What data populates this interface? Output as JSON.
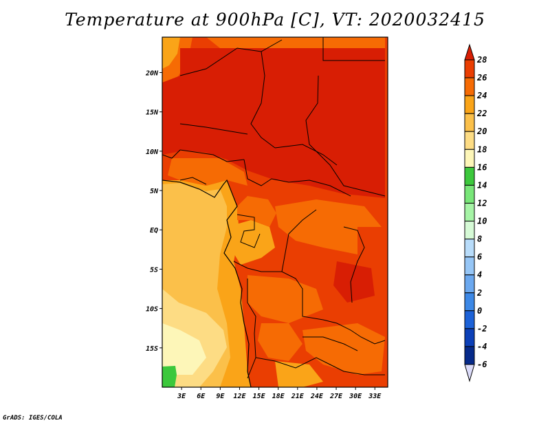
{
  "title": "Temperature at 900hPa [C], VT: 2020032415",
  "credit": "GrADS: IGES/COLA",
  "map": {
    "lat_labels": [
      "20N",
      "15N",
      "10N",
      "5N",
      "EQ",
      "5S",
      "10S",
      "15S"
    ],
    "lon_labels": [
      "3E",
      "6E",
      "9E",
      "12E",
      "15E",
      "18E",
      "21E",
      "24E",
      "27E",
      "30E",
      "33E"
    ],
    "lat_range": [
      -20,
      24.5
    ],
    "lon_range": [
      0,
      35
    ]
  },
  "colorbar": {
    "labels": [
      "28",
      "26",
      "24",
      "22",
      "20",
      "18",
      "16",
      "14",
      "12",
      "10",
      "8",
      "6",
      "4",
      "2",
      "0",
      "-2",
      "-4",
      "-6"
    ],
    "colors": [
      "#d81e04",
      "#ea3e02",
      "#f66b04",
      "#faa418",
      "#fbc04a",
      "#fddc84",
      "#fdf6b8",
      "#3cc83c",
      "#78e678",
      "#a6f4a6",
      "#d6fad6",
      "#b8dcfa",
      "#96c6f6",
      "#6ba8ef",
      "#3c88e6",
      "#1c62d8",
      "#0c40b8",
      "#062a8a",
      "#0a1468",
      "#dcdcfa"
    ]
  }
}
